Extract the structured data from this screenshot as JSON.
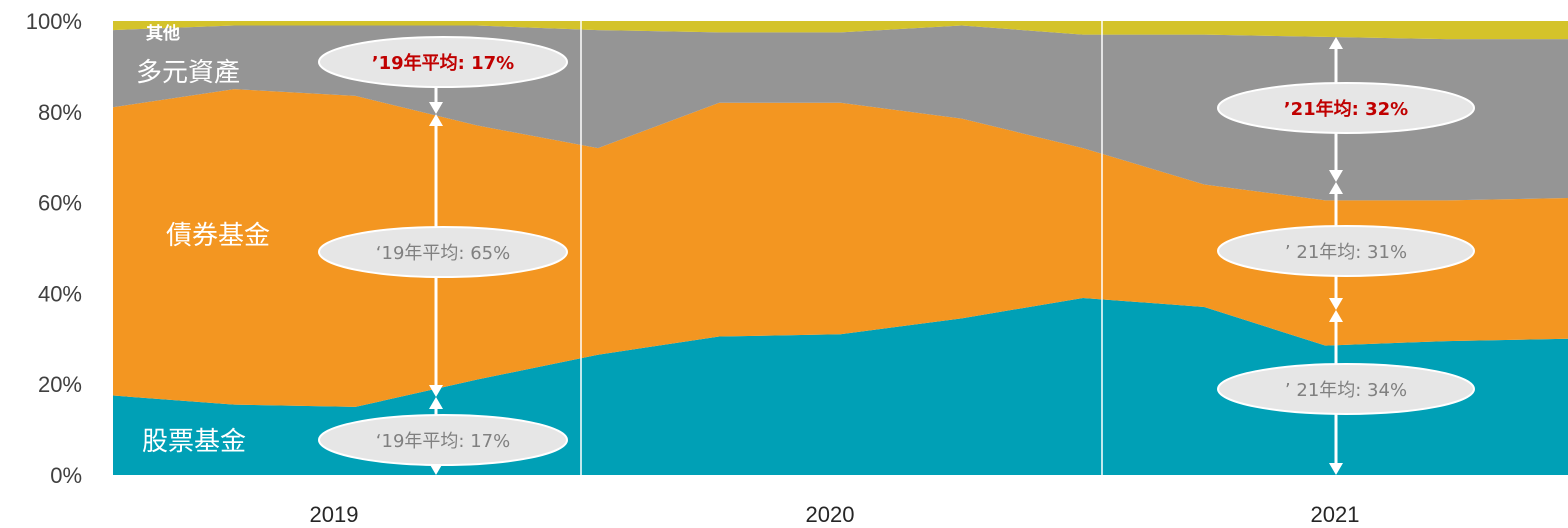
{
  "chart_data": {
    "type": "area",
    "stacked_percent": true,
    "x": [
      "2019-01",
      "2019-03",
      "2019-06",
      "2019-09",
      "2019-12",
      "2020-03",
      "2020-06",
      "2020-09",
      "2020-12",
      "2021-03",
      "2021-06",
      "2021-09",
      "2021-12"
    ],
    "x_tick_labels": [
      "2019",
      "2020",
      "2021"
    ],
    "y_tick_labels": [
      "0%",
      "20%",
      "40%",
      "60%",
      "80%",
      "100%"
    ],
    "ylim": [
      0,
      100
    ],
    "grid": false,
    "year_dividers": true,
    "series": [
      {
        "name": "股票基金",
        "color": "#00a0b6",
        "values": [
          17.5,
          15.5,
          15.0,
          21.0,
          26.5,
          30.5,
          31.0,
          34.5,
          39.0,
          37.0,
          28.5,
          29.5,
          30.0
        ]
      },
      {
        "name": "債券基金",
        "color": "#f39621",
        "values": [
          63.5,
          69.5,
          68.5,
          56.0,
          45.5,
          51.5,
          51.0,
          44.0,
          33.0,
          27.0,
          32.0,
          31.0,
          31.0
        ]
      },
      {
        "name": "多元資產",
        "color": "#959595",
        "values": [
          17.0,
          14.0,
          15.5,
          22.0,
          26.0,
          15.5,
          15.5,
          20.5,
          25.0,
          33.0,
          36.0,
          35.5,
          35.0
        ]
      },
      {
        "name": "其他",
        "color": "#d4c32a",
        "values": [
          2.0,
          1.0,
          1.0,
          1.0,
          2.0,
          2.5,
          2.5,
          1.0,
          3.0,
          3.0,
          3.5,
          4.0,
          4.0
        ]
      }
    ],
    "annotations": [
      {
        "text": "’19年平均: 17%",
        "style": "highlight"
      },
      {
        "text": "‘19年平均: 65%",
        "style": "normal"
      },
      {
        "text": "‘19年平均: 17%",
        "style": "normal"
      },
      {
        "text": "’21年均: 32%",
        "style": "highlight"
      },
      {
        "text": "’  21年均: 31%",
        "style": "normal"
      },
      {
        "text": "’  21年均: 34%",
        "style": "normal"
      }
    ]
  },
  "colors": {
    "highlight_text": "#c00000",
    "normal_text": "#808080",
    "callout_fill": "#e6e6e6",
    "arrow": "#ffffff",
    "divider": "#ffffff"
  }
}
